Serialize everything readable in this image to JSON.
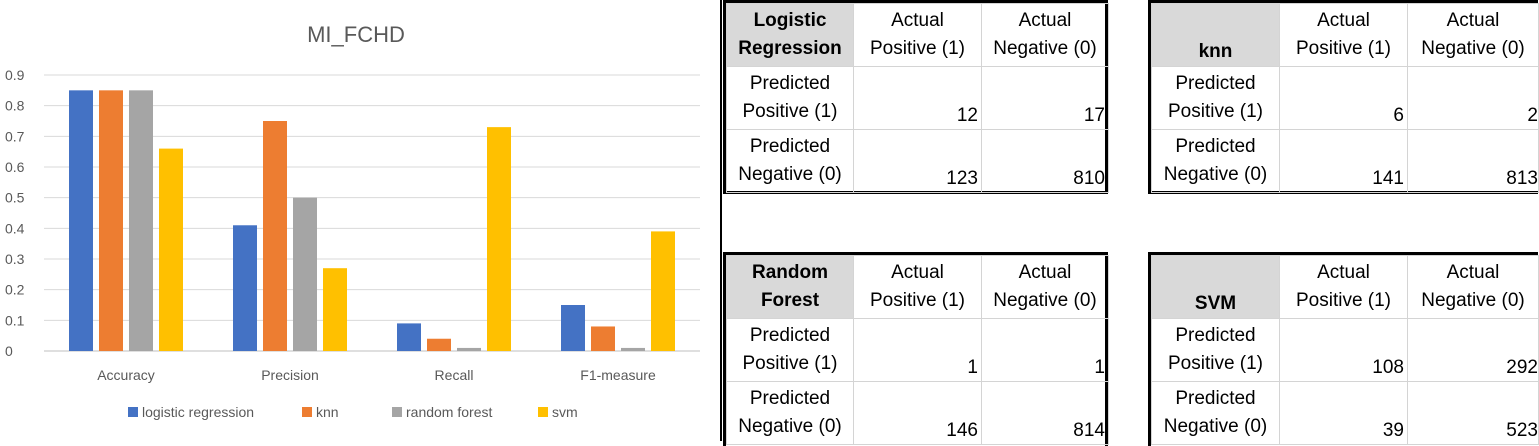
{
  "chart_data": {
    "type": "bar",
    "title": "MI_FCHD",
    "categories": [
      "Accuracy",
      "Precision",
      "Recall",
      "F1-measure"
    ],
    "ylim": [
      0,
      0.9
    ],
    "yticks": [
      "0",
      "0.1",
      "0.2",
      "0.3",
      "0.4",
      "0.5",
      "0.6",
      "0.7",
      "0.8",
      "0.9"
    ],
    "grid": true,
    "legend": "bottom",
    "series": [
      {
        "name": "logistic regression",
        "color": "#4472C4",
        "values": [
          0.85,
          0.41,
          0.09,
          0.15
        ]
      },
      {
        "name": "knn",
        "color": "#ED7D31",
        "values": [
          0.85,
          0.75,
          0.04,
          0.08
        ]
      },
      {
        "name": "random forest",
        "color": "#A5A5A5",
        "values": [
          0.85,
          0.5,
          0.01,
          0.01
        ]
      },
      {
        "name": "svm",
        "color": "#FFC000",
        "values": [
          0.66,
          0.27,
          0.73,
          0.39
        ]
      }
    ]
  },
  "matrices": [
    {
      "title_line1": "Logistic",
      "title_line2": "Regression",
      "col1_line1": "Actual",
      "col1_line2": "Positive (1)",
      "col2_line1": "Actual",
      "col2_line2": "Negative (0)",
      "row1_line1": "Predicted",
      "row1_line2": "Positive (1)",
      "row2_line1": "Predicted",
      "row2_line2": "Negative (0)",
      "tp": "12",
      "fp": "17",
      "fn": "123",
      "tn": "810"
    },
    {
      "title_line1": "",
      "title_line2": "knn",
      "col1_line1": "Actual",
      "col1_line2": "Positive (1)",
      "col2_line1": "Actual",
      "col2_line2": "Negative (0)",
      "row1_line1": "Predicted",
      "row1_line2": "Positive (1)",
      "row2_line1": "Predicted",
      "row2_line2": "Negative (0)",
      "tp": "6",
      "fp": "2",
      "fn": "141",
      "tn": "813"
    },
    {
      "title_line1": "Random",
      "title_line2": "Forest",
      "col1_line1": "Actual",
      "col1_line2": "Positive (1)",
      "col2_line1": "Actual",
      "col2_line2": "Negative (0)",
      "row1_line1": "Predicted",
      "row1_line2": "Positive (1)",
      "row2_line1": "Predicted",
      "row2_line2": "Negative (0)",
      "tp": "1",
      "fp": "1",
      "fn": "146",
      "tn": "814"
    },
    {
      "title_line1": "",
      "title_line2": "SVM",
      "col1_line1": "Actual",
      "col1_line2": "Positive (1)",
      "col2_line1": "Actual",
      "col2_line2": "Negative (0)",
      "row1_line1": "Predicted",
      "row1_line2": "Positive (1)",
      "row2_line1": "Predicted",
      "row2_line2": "Negative (0)",
      "tp": "108",
      "fp": "292",
      "fn": "39",
      "tn": "523"
    }
  ]
}
